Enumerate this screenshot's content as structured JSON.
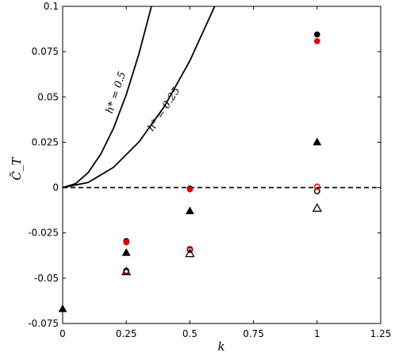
{
  "chart_data": {
    "type": "scatter",
    "title": "",
    "xlabel": "k",
    "ylabel": "C̄_T",
    "xlim": [
      0,
      1.25
    ],
    "ylim": [
      -0.075,
      0.1
    ],
    "xticks": [
      0,
      0.25,
      0.5,
      0.75,
      1,
      1.25
    ],
    "xtick_labels": [
      "0",
      "0.25",
      "0.5",
      "0.75",
      "1",
      "1.25"
    ],
    "yticks": [
      -0.075,
      -0.05,
      -0.025,
      0,
      0.025,
      0.05,
      0.075,
      0.1
    ],
    "ytick_labels": [
      "-0.075",
      "-0.05",
      "-0.025",
      "0",
      "0.025",
      "0.05",
      "0.075",
      "0.1"
    ],
    "grid": false,
    "legend": "none",
    "reference_line": {
      "y": 0,
      "style": "dashed",
      "color": "#000000"
    },
    "curves": [
      {
        "label": "h* = 0.5",
        "k": [
          0,
          0.05,
          0.1,
          0.15,
          0.2,
          0.25,
          0.3,
          0.35
        ],
        "values": [
          0,
          0.0021,
          0.0082,
          0.0185,
          0.0328,
          0.0513,
          0.0739,
          0.1006
        ]
      },
      {
        "label": "h* = 0.25",
        "k": [
          0,
          0.1,
          0.2,
          0.3,
          0.4,
          0.5,
          0.6
        ],
        "values": [
          0,
          0.0028,
          0.0112,
          0.0252,
          0.0448,
          0.07,
          0.1008
        ]
      }
    ],
    "series": [
      {
        "marker": "filled-circle",
        "color": "#000000",
        "x": [
          0.25,
          0.5,
          1
        ],
        "y": [
          -0.0295,
          -0.0005,
          0.0845
        ]
      },
      {
        "marker": "filled-circle",
        "color": "#e00000",
        "x": [
          0.25,
          0.5,
          1
        ],
        "y": [
          -0.0302,
          -0.001,
          0.0808
        ]
      },
      {
        "marker": "filled-triangle",
        "color": "#000000",
        "x": [
          0,
          0.25,
          0.5,
          1
        ],
        "y": [
          -0.067,
          -0.036,
          -0.013,
          0.025
        ]
      },
      {
        "marker": "open-circle",
        "color": "#000000",
        "x": [
          0.25,
          0.5,
          1
        ],
        "y": [
          -0.046,
          -0.034,
          -0.002
        ]
      },
      {
        "marker": "open-circle",
        "color": "#e00000",
        "x": [
          0.25,
          0.5,
          1
        ],
        "y": [
          -0.0465,
          -0.0345,
          0.0005
        ]
      },
      {
        "marker": "open-triangle",
        "color": "#000000",
        "x": [
          0.25,
          0.5,
          1
        ],
        "y": [
          -0.0465,
          -0.0365,
          -0.0115
        ]
      }
    ]
  }
}
